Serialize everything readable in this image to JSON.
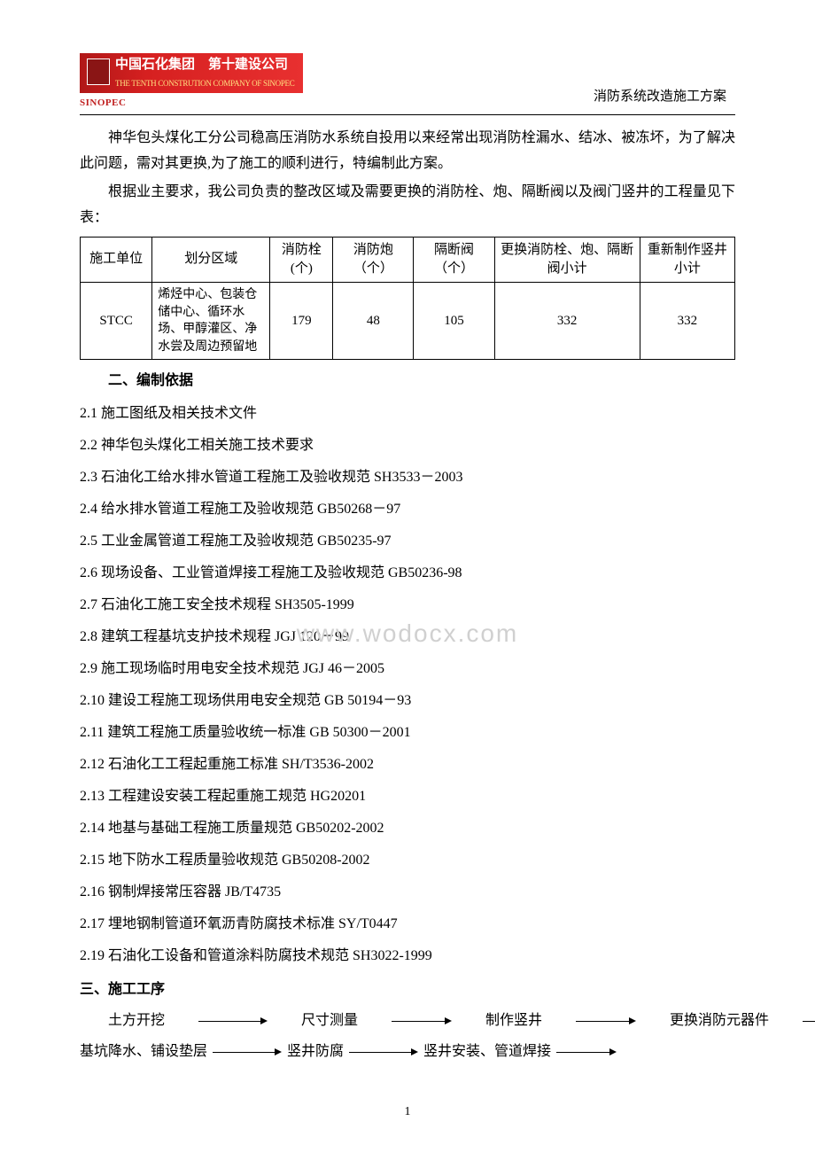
{
  "header": {
    "logo_cn": "中国石化集团　第十建设公司",
    "logo_en": "THE TENTH CONSTRUTION COMPANY OF SINOPEC",
    "sinopec": "SINOPEC",
    "right_title": "消防系统改造施工方案"
  },
  "intro": {
    "p1": "神华包头煤化工分公司稳高压消防水系统自投用以来经常出现消防栓漏水、结冰、被冻坏，为了解决此问题，需对其更换,为了施工的顺利进行，特编制此方案。",
    "p2": "根据业主要求，我公司负责的整改区域及需要更换的消防栓、炮、隔断阀以及阀门竖井的工程量见下表："
  },
  "table": {
    "headers": [
      "施工单位",
      "划分区域",
      "消防栓(个)",
      "消防炮（个）",
      "隔断阀（个）",
      "更换消防栓、炮、隔断阀小计",
      "重新制作竖井小计"
    ],
    "row": [
      "STCC",
      "烯烃中心、包装仓储中心、循环水场、甲醇灌区、净水尝及周边预留地",
      "179",
      "48",
      "105",
      "332",
      "332"
    ]
  },
  "section2": {
    "title": "二、编制依据",
    "items": [
      "2.1 施工图纸及相关技术文件",
      "2.2 神华包头煤化工相关施工技术要求",
      "2.3 石油化工给水排水管道工程施工及验收规范 SH3533－2003",
      "2.4 给水排水管道工程施工及验收规范 GB50268－97",
      "2.5 工业金属管道工程施工及验收规范 GB50235-97",
      "2.6 现场设备、工业管道焊接工程施工及验收规范 GB50236-98",
      "2.7 石油化工施工安全技术规程 SH3505-1999",
      "2.8 建筑工程基坑支护技术规程 JGJ 120－99",
      "2.9 施工现场临时用电安全技术规范 JGJ 46－2005",
      "2.10 建设工程施工现场供用电安全规范 GB 50194－93",
      "2.11 建筑工程施工质量验收统一标准 GB 50300－2001",
      "2.12 石油化工工程起重施工标准 SH/T3536-2002",
      "2.13 工程建设安装工程起重施工规范 HG20201",
      "2.14 地基与基础工程施工质量规范 GB50202-2002",
      "2.15 地下防水工程质量验收规范 GB50208-2002",
      "2.16 钢制焊接常压容器 JB/T4735",
      "2.17 埋地钢制管道环氧沥青防腐技术标准 SY/T0447",
      "2.19 石油化工设备和管道涂料防腐技术规范 SH3022-1999"
    ]
  },
  "section3": {
    "title": "三、施工工序",
    "flow1": [
      "土方开挖",
      "尺寸测量",
      "制作竖井",
      "更换消防元器件"
    ],
    "flow2": [
      "基坑降水、铺设垫层",
      "竖井防腐",
      "竖井安装、管道焊接"
    ]
  },
  "watermark": "www.wodocx.com",
  "page_number": "1",
  "colors": {
    "text": "#000000",
    "logo_bg_start": "#b01818",
    "logo_bg_end": "#e83030",
    "logo_en": "#ffe080",
    "watermark": "#d0d0d0",
    "background": "#ffffff"
  },
  "arrow_widths": {
    "flow1": [
      70,
      60,
      60,
      60
    ],
    "flow2": [
      70,
      70,
      60
    ]
  }
}
